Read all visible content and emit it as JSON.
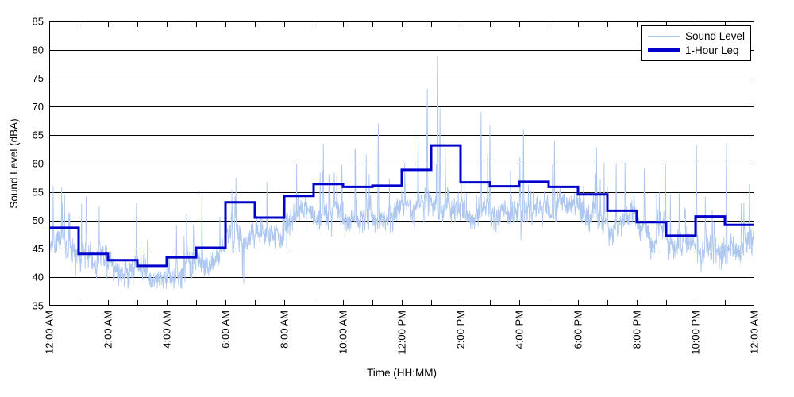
{
  "chart_data": {
    "type": "line",
    "title": "",
    "xlabel": "Time (HH:MM)",
    "ylabel": "Sound Level (dBA)",
    "ylim": [
      35,
      85
    ],
    "ytick_step": 5,
    "ytick_labels": [
      "35",
      "40",
      "45",
      "50",
      "55",
      "60",
      "65",
      "70",
      "75",
      "80",
      "85"
    ],
    "xlim_hours": [
      0,
      24
    ],
    "x_major_tick_labels": [
      "12:00 AM",
      "2:00 AM",
      "4:00 AM",
      "6:00 AM",
      "8:00 AM",
      "10:00 AM",
      "12:00 PM",
      "2:00 PM",
      "4:00 PM",
      "6:00 PM",
      "8:00 PM",
      "10:00 PM",
      "12:00 AM"
    ],
    "x_major_tick_every_hours": 2,
    "x_minor_tick_every_hours": 1,
    "grid": {
      "horizontal": true,
      "vertical": false,
      "color": "#000000"
    },
    "legend": {
      "position": "top-right",
      "entries": [
        "Sound Level",
        "1-Hour Leq"
      ]
    },
    "series": [
      {
        "name": "Sound Level",
        "color": "#ADC7EF",
        "style": "noisy-fine-trace",
        "samples_per_hour": 90,
        "baseline_per_hour": [
          44.5,
          42.5,
          41.0,
          40.5,
          41.5,
          43.0,
          47.0,
          48.0,
          50.5,
          51.5,
          51.5,
          52.0,
          52.5,
          53.0,
          52.5,
          52.0,
          52.5,
          52.0,
          51.5,
          49.5,
          47.0,
          44.5,
          45.5,
          44.5
        ],
        "noise_sd": 1.2,
        "wander_sd": 0.35,
        "spike_probability": 0.03,
        "spike_db_min": 3,
        "spike_db_max": 11,
        "min_clip": 38,
        "max_clip": 79.5,
        "seed": 20240613,
        "major_spikes": [
          {
            "hour": 0.42,
            "dBA": 55.8
          },
          {
            "hour": 0.52,
            "dBA": 54.5
          },
          {
            "hour": 2.97,
            "dBA": 53.0
          },
          {
            "hour": 5.2,
            "dBA": 55.0
          },
          {
            "hour": 6.35,
            "dBA": 57.5
          },
          {
            "hour": 8.42,
            "dBA": 60.0
          },
          {
            "hour": 9.33,
            "dBA": 63.5
          },
          {
            "hour": 10.42,
            "dBA": 62.5
          },
          {
            "hour": 11.2,
            "dBA": 67.1
          },
          {
            "hour": 12.55,
            "dBA": 65.5
          },
          {
            "hour": 12.87,
            "dBA": 73.2
          },
          {
            "hour": 13.22,
            "dBA": 78.9
          },
          {
            "hour": 13.3,
            "dBA": 69.7
          },
          {
            "hour": 14.7,
            "dBA": 69.1
          },
          {
            "hour": 15.0,
            "dBA": 66.7
          },
          {
            "hour": 16.15,
            "dBA": 66.0
          },
          {
            "hour": 17.2,
            "dBA": 64.0
          },
          {
            "hour": 19.3,
            "dBA": 60.0
          },
          {
            "hour": 22.03,
            "dBA": 63.4
          },
          {
            "hour": 23.05,
            "dBA": 63.7
          }
        ]
      },
      {
        "name": "1-Hour Leq",
        "color": "#0000CC",
        "style": "hourly-step",
        "hours": [
          0,
          1,
          2,
          3,
          4,
          5,
          6,
          7,
          8,
          9,
          10,
          11,
          12,
          13,
          14,
          15,
          16,
          17,
          18,
          19,
          20,
          21,
          22,
          23
        ],
        "values": [
          48.7,
          44.1,
          43.0,
          42.0,
          43.5,
          45.2,
          53.2,
          50.5,
          54.3,
          56.4,
          55.9,
          56.1,
          58.9,
          63.2,
          56.7,
          56.0,
          56.8,
          55.9,
          54.6,
          51.7,
          49.7,
          47.3,
          50.7,
          49.2
        ]
      }
    ]
  }
}
